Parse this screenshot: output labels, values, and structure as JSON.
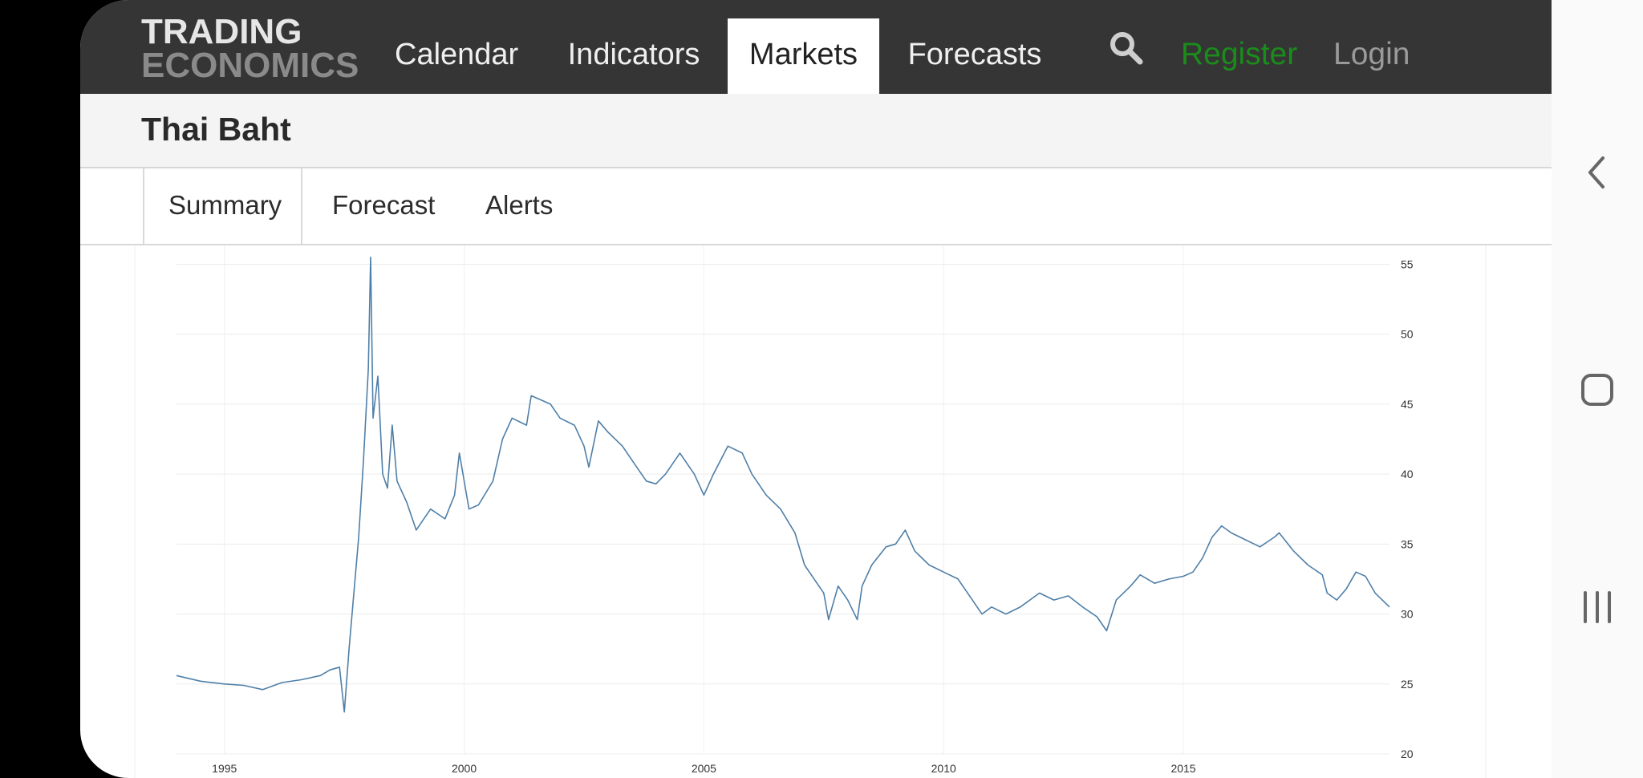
{
  "header": {
    "logo_line1": "TRADING",
    "logo_line2": "ECONOMICS",
    "nav": [
      {
        "label": "Calendar"
      },
      {
        "label": "Indicators"
      },
      {
        "label": "Markets"
      },
      {
        "label": "Forecasts"
      }
    ],
    "active_nav": "Markets",
    "register": "Register",
    "login": "Login"
  },
  "page": {
    "title": "Thai Baht"
  },
  "tabs": [
    {
      "label": "Summary"
    },
    {
      "label": "Forecast"
    },
    {
      "label": "Alerts"
    }
  ],
  "active_tab": "Summary",
  "chart_data": {
    "type": "line",
    "title": "",
    "xlabel": "",
    "ylabel": "",
    "xlim": [
      1994.0,
      2019.3
    ],
    "ylim": [
      20,
      56
    ],
    "x_ticks": [
      "1995",
      "2000",
      "2005",
      "2010",
      "2015"
    ],
    "y_ticks": [
      "55",
      "50",
      "45",
      "40",
      "35",
      "30",
      "25",
      "20"
    ],
    "grid": true,
    "color": "#4f7fa8",
    "series": [
      {
        "name": "",
        "points": [
          [
            1994.0,
            25.6
          ],
          [
            1994.5,
            25.2
          ],
          [
            1995.0,
            25.0
          ],
          [
            1995.4,
            24.9
          ],
          [
            1995.8,
            24.6
          ],
          [
            1996.2,
            25.1
          ],
          [
            1996.6,
            25.3
          ],
          [
            1997.0,
            25.6
          ],
          [
            1997.2,
            26.0
          ],
          [
            1997.4,
            26.2
          ],
          [
            1997.5,
            23.0
          ],
          [
            1997.6,
            27.5
          ],
          [
            1997.8,
            35.5
          ],
          [
            1997.9,
            41.0
          ],
          [
            1998.0,
            47.5
          ],
          [
            1998.05,
            55.5
          ],
          [
            1998.1,
            44.0
          ],
          [
            1998.2,
            47.0
          ],
          [
            1998.3,
            40.0
          ],
          [
            1998.4,
            39.0
          ],
          [
            1998.5,
            43.5
          ],
          [
            1998.6,
            39.5
          ],
          [
            1998.8,
            38.0
          ],
          [
            1999.0,
            36.0
          ],
          [
            1999.3,
            37.5
          ],
          [
            1999.6,
            36.8
          ],
          [
            1999.8,
            38.5
          ],
          [
            1999.9,
            41.5
          ],
          [
            2000.1,
            37.5
          ],
          [
            2000.3,
            37.8
          ],
          [
            2000.6,
            39.5
          ],
          [
            2000.8,
            42.5
          ],
          [
            2001.0,
            44.0
          ],
          [
            2001.3,
            43.5
          ],
          [
            2001.4,
            45.6
          ],
          [
            2001.8,
            45.0
          ],
          [
            2002.0,
            44.0
          ],
          [
            2002.3,
            43.5
          ],
          [
            2002.5,
            42.0
          ],
          [
            2002.6,
            40.5
          ],
          [
            2002.8,
            43.8
          ],
          [
            2003.0,
            43.0
          ],
          [
            2003.3,
            42.0
          ],
          [
            2003.6,
            40.5
          ],
          [
            2003.8,
            39.5
          ],
          [
            2004.0,
            39.3
          ],
          [
            2004.2,
            40.0
          ],
          [
            2004.5,
            41.5
          ],
          [
            2004.8,
            40.0
          ],
          [
            2005.0,
            38.5
          ],
          [
            2005.2,
            40.0
          ],
          [
            2005.5,
            42.0
          ],
          [
            2005.8,
            41.5
          ],
          [
            2006.0,
            40.0
          ],
          [
            2006.3,
            38.5
          ],
          [
            2006.6,
            37.5
          ],
          [
            2006.9,
            35.8
          ],
          [
            2007.1,
            33.5
          ],
          [
            2007.3,
            32.5
          ],
          [
            2007.5,
            31.5
          ],
          [
            2007.6,
            29.6
          ],
          [
            2007.8,
            32.0
          ],
          [
            2008.0,
            31.0
          ],
          [
            2008.2,
            29.6
          ],
          [
            2008.3,
            32.0
          ],
          [
            2008.5,
            33.5
          ],
          [
            2008.8,
            34.8
          ],
          [
            2009.0,
            35.0
          ],
          [
            2009.2,
            36.0
          ],
          [
            2009.4,
            34.5
          ],
          [
            2009.7,
            33.5
          ],
          [
            2010.0,
            33.0
          ],
          [
            2010.3,
            32.5
          ],
          [
            2010.6,
            31.0
          ],
          [
            2010.8,
            30.0
          ],
          [
            2011.0,
            30.5
          ],
          [
            2011.3,
            30.0
          ],
          [
            2011.6,
            30.5
          ],
          [
            2012.0,
            31.5
          ],
          [
            2012.3,
            31.0
          ],
          [
            2012.6,
            31.3
          ],
          [
            2012.9,
            30.5
          ],
          [
            2013.2,
            29.8
          ],
          [
            2013.4,
            28.8
          ],
          [
            2013.6,
            31.0
          ],
          [
            2013.9,
            32.0
          ],
          [
            2014.1,
            32.8
          ],
          [
            2014.4,
            32.2
          ],
          [
            2014.7,
            32.5
          ],
          [
            2015.0,
            32.7
          ],
          [
            2015.2,
            33.0
          ],
          [
            2015.4,
            34.0
          ],
          [
            2015.6,
            35.5
          ],
          [
            2015.8,
            36.3
          ],
          [
            2016.0,
            35.8
          ],
          [
            2016.3,
            35.3
          ],
          [
            2016.6,
            34.8
          ],
          [
            2016.9,
            35.5
          ],
          [
            2017.0,
            35.8
          ],
          [
            2017.3,
            34.5
          ],
          [
            2017.6,
            33.5
          ],
          [
            2017.9,
            32.8
          ],
          [
            2018.0,
            31.5
          ],
          [
            2018.2,
            31.0
          ],
          [
            2018.4,
            31.8
          ],
          [
            2018.6,
            33.0
          ],
          [
            2018.8,
            32.7
          ],
          [
            2019.0,
            31.5
          ],
          [
            2019.15,
            31.0
          ],
          [
            2019.3,
            30.5
          ]
        ]
      }
    ]
  }
}
